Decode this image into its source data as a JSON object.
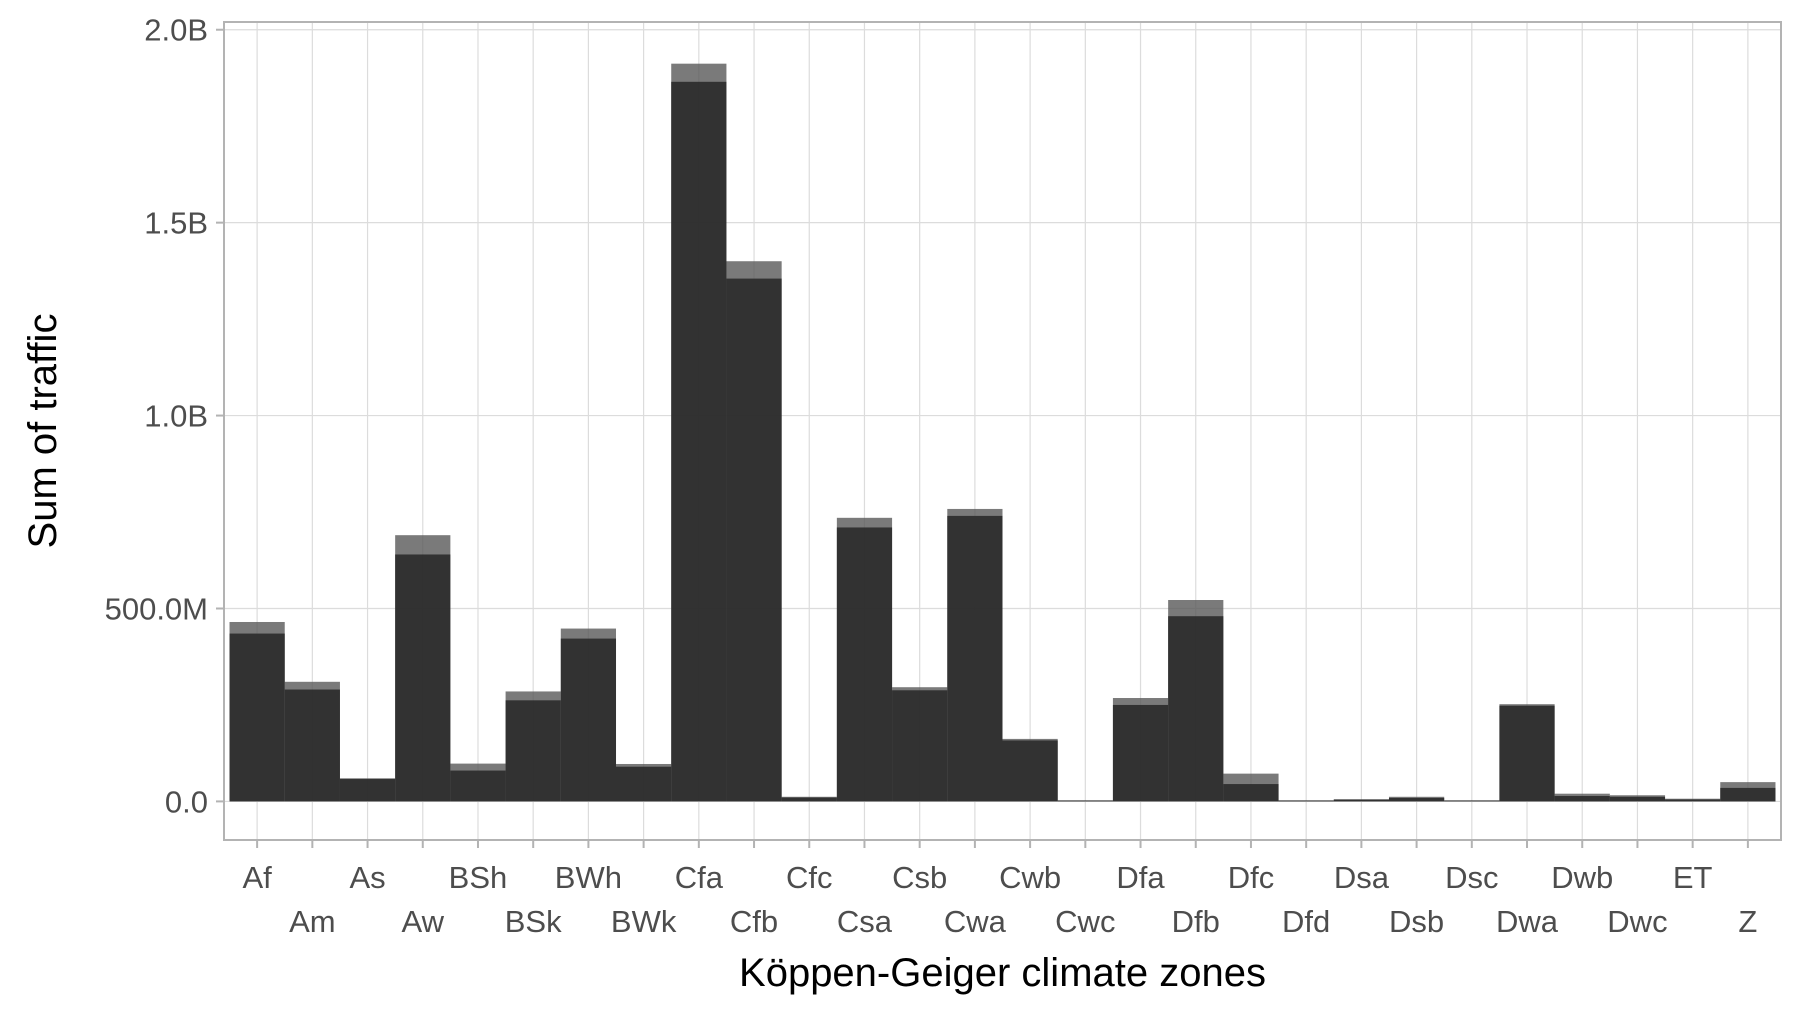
{
  "chart_data": {
    "type": "bar",
    "title": "",
    "xlabel": "Köppen-Geiger climate zones",
    "ylabel": "Sum of traffic",
    "ylim": [
      -100000000,
      2020000000
    ],
    "yticks": [
      {
        "value": 0,
        "label": "0.0"
      },
      {
        "value": 500000000,
        "label": "500.0M"
      },
      {
        "value": 1000000000,
        "label": "1.0B"
      },
      {
        "value": 1500000000,
        "label": "1.5B"
      },
      {
        "value": 2000000000,
        "label": "2.0B"
      }
    ],
    "grid": true,
    "legend": "none",
    "categories": [
      "Af",
      "Am",
      "As",
      "Aw",
      "BSh",
      "BSk",
      "BWh",
      "BWk",
      "Cfa",
      "Cfb",
      "Cfc",
      "Csa",
      "Csb",
      "Cwa",
      "Cwb",
      "Cwc",
      "Dfa",
      "Dfb",
      "Dfc",
      "Dfd",
      "Dsa",
      "Dsb",
      "Dsc",
      "Dwa",
      "Dwb",
      "Dwc",
      "ET",
      "Z"
    ],
    "series": [
      {
        "values": [
          435000000,
          290000000,
          58000000,
          640000000,
          80000000,
          262000000,
          422000000,
          90000000,
          1865000000,
          1355000000,
          10000000,
          710000000,
          288000000,
          740000000,
          158000000,
          2000000,
          250000000,
          480000000,
          45000000,
          2000000,
          4000000,
          9000000,
          2000000,
          248000000,
          14000000,
          12000000,
          5000000,
          35000000
        ]
      },
      {
        "values": [
          465000000,
          310000000,
          60000000,
          690000000,
          98000000,
          285000000,
          448000000,
          97000000,
          1912000000,
          1400000000,
          12000000,
          735000000,
          296000000,
          758000000,
          162000000,
          3000000,
          268000000,
          522000000,
          72000000,
          3000000,
          6000000,
          12000000,
          3000000,
          252000000,
          20000000,
          16000000,
          7000000,
          50000000
        ]
      }
    ],
    "colors": {
      "bar_front": "#262626",
      "bar_back": "#595959",
      "grid": "#dcdcdc",
      "panel_border": "#b3b3b3",
      "tick": "#b3b3b3"
    }
  }
}
